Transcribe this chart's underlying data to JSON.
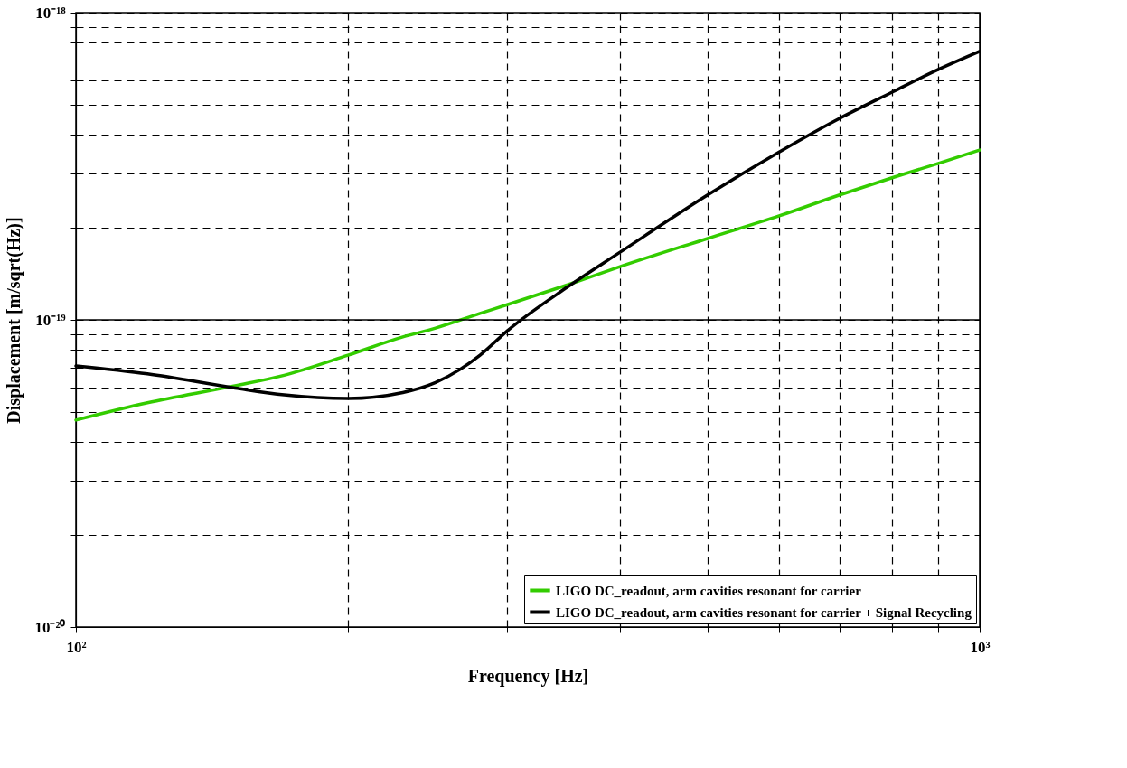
{
  "chart_data": {
    "type": "line",
    "xlabel": "Frequency [Hz]",
    "ylabel": "Displacement  [m/sqrt(Hz)]",
    "log": "xy",
    "grid": true,
    "legend": "bottom right",
    "line_style": "solid",
    "marker": "none",
    "ref_lines": [
      {
        "axis": "y",
        "value": 1e-19,
        "color": "#000000",
        "line_style": "solid"
      }
    ],
    "x": [
      100,
      120,
      150,
      170,
      200,
      230,
      250,
      280,
      300,
      350,
      400,
      500,
      600,
      700,
      800,
      900,
      1000
    ],
    "xlim": [
      100,
      1000
    ],
    "xticks": [
      {
        "value": 100,
        "label": "10²"
      },
      {
        "value": 200,
        "label": null
      },
      {
        "value": 300,
        "label": null
      },
      {
        "value": 400,
        "label": null
      },
      {
        "value": 500,
        "label": null
      },
      {
        "value": 600,
        "label": null
      },
      {
        "value": 700,
        "label": null
      },
      {
        "value": 800,
        "label": null
      },
      {
        "value": 900,
        "label": null
      },
      {
        "value": 1000,
        "label": "10³"
      }
    ],
    "ylim": [
      1e-20,
      1e-18
    ],
    "yticks": [
      {
        "value": 1e-20,
        "label": "10⁻²⁰"
      },
      {
        "value": 2e-20,
        "label": null
      },
      {
        "value": 3e-20,
        "label": null
      },
      {
        "value": 4e-20,
        "label": null
      },
      {
        "value": 5e-20,
        "label": null
      },
      {
        "value": 6e-20,
        "label": null
      },
      {
        "value": 7e-20,
        "label": null
      },
      {
        "value": 8e-20,
        "label": null
      },
      {
        "value": 9e-20,
        "label": null
      },
      {
        "value": 1e-19,
        "label": "10⁻¹⁹"
      },
      {
        "value": 2e-19,
        "label": null
      },
      {
        "value": 3e-19,
        "label": null
      },
      {
        "value": 4e-19,
        "label": null
      },
      {
        "value": 5e-19,
        "label": null
      },
      {
        "value": 6e-19,
        "label": null
      },
      {
        "value": 7e-19,
        "label": null
      },
      {
        "value": 8e-19,
        "label": null
      },
      {
        "value": 9e-19,
        "label": null
      },
      {
        "value": 1e-18,
        "label": "10⁻¹⁸"
      }
    ],
    "series": [
      {
        "name": "LIGO DC_readout, arm cavities resonant for carrier",
        "color": "#33cc00",
        "values": [
          4.72e-20,
          5.37e-20,
          6.1e-20,
          6.6e-20,
          7.67e-20,
          8.8e-20,
          9.4e-20,
          1.05e-19,
          1.12e-19,
          1.3e-19,
          1.49e-19,
          1.84e-19,
          2.18e-19,
          2.55e-19,
          2.9e-19,
          3.23e-19,
          3.57e-19
        ]
      },
      {
        "name": "LIGO DC_readout, arm cavities resonant for carrier + Signal Recycling",
        "color": "#000000",
        "values": [
          7.08e-20,
          6.67e-20,
          6e-20,
          5.7e-20,
          5.55e-20,
          5.8e-20,
          6.25e-20,
          7.67e-20,
          9.2e-20,
          1.28e-19,
          1.66e-19,
          2.55e-19,
          3.52e-19,
          4.53e-19,
          5.51e-19,
          6.53e-19,
          7.48e-19
        ]
      }
    ]
  }
}
